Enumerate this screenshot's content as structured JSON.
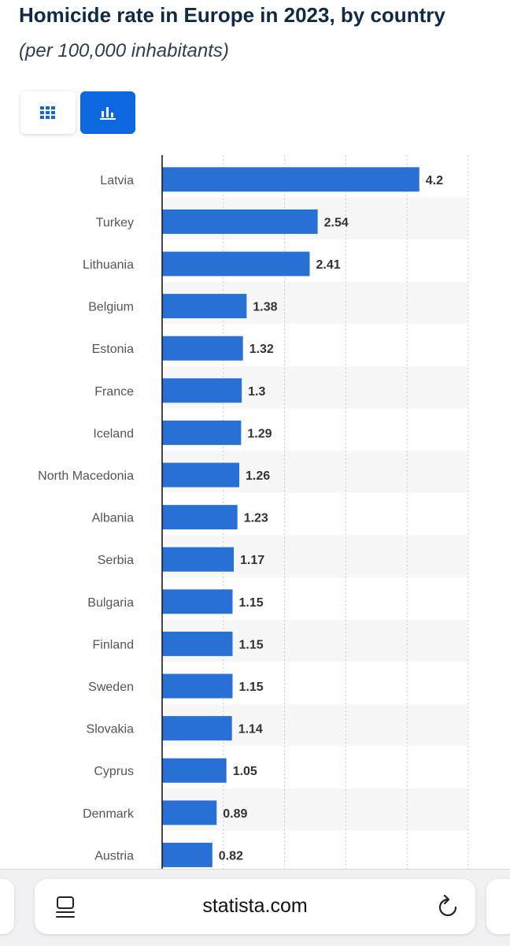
{
  "title": "Homicide rate in Europe in 2023, by country",
  "subtitle": "(per 100,000 inhabitants)",
  "colors": {
    "bar": "#2870d6",
    "stripe": "#f7f7f7",
    "grid": "#c8c8c8",
    "axis": "#1a1a1a",
    "label": "#555555",
    "value": "#333333"
  },
  "chart_data": {
    "type": "bar",
    "orientation": "horizontal",
    "title": "Homicide rate in Europe in 2023, by country",
    "subtitle": "(per 100,000 inhabitants)",
    "categories": [
      "Latvia",
      "Turkey",
      "Lithuania",
      "Belgium",
      "Estonia",
      "France",
      "Iceland",
      "North Macedonia",
      "Albania",
      "Serbia",
      "Bulgaria",
      "Finland",
      "Sweden",
      "Slovakia",
      "Cyprus",
      "Denmark",
      "Austria"
    ],
    "values": [
      4.2,
      2.54,
      2.41,
      1.38,
      1.32,
      1.3,
      1.29,
      1.26,
      1.23,
      1.17,
      1.15,
      1.15,
      1.15,
      1.14,
      1.05,
      0.89,
      0.82
    ],
    "value_labels": [
      "4.2",
      "2.54",
      "2.41",
      "1.38",
      "1.32",
      "1.3",
      "1.29",
      "1.26",
      "1.23",
      "1.17",
      "1.15",
      "1.15",
      "1.15",
      "1.14",
      "1.05",
      "0.89",
      "0.82"
    ],
    "xlim": [
      0,
      5
    ],
    "grid_step": 1,
    "grid": true,
    "xlabel": "",
    "ylabel": ""
  },
  "browser": {
    "url": "statista.com"
  }
}
